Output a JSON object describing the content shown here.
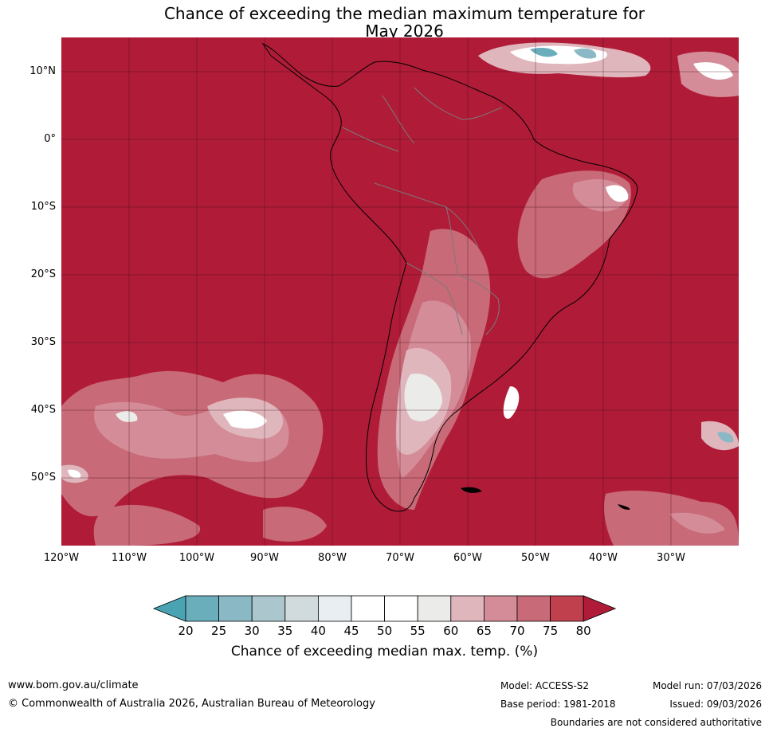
{
  "title": {
    "line1": "Chance of exceeding the median maximum temperature for",
    "line2": "May 2026"
  },
  "map": {
    "lat_labels": [
      "10°N",
      "0°",
      "10°S",
      "20°S",
      "30°S",
      "40°S",
      "50°S"
    ],
    "lon_labels": [
      "120°W",
      "110°W",
      "100°W",
      "90°W",
      "80°W",
      "70°W",
      "60°W",
      "50°W",
      "40°W",
      "30°W"
    ],
    "lat_range": [
      -60,
      15
    ],
    "lon_range": [
      -120,
      -20
    ],
    "background_class": "80"
  },
  "colorbar": {
    "ticks": [
      "20",
      "25",
      "30",
      "35",
      "40",
      "45",
      "50",
      "55",
      "60",
      "65",
      "70",
      "75",
      "80"
    ],
    "colors": [
      "#4aa3b3",
      "#6aaebc",
      "#8ab9c5",
      "#abc7cd",
      "#d1dadd",
      "#e8eef1",
      "#ffffff",
      "#ffffff",
      "#ebebea",
      "#e0b6bd",
      "#d48c98",
      "#c86a78",
      "#c0404e",
      "#b01c38"
    ],
    "label": "Chance of exceeding median max. temp. (%)"
  },
  "footer": {
    "url": "www.bom.gov.au/climate",
    "copyright": "© Commonwealth of Australia 2026, Australian Bureau of Meteorology",
    "model": "Model: ACCESS-S2",
    "base_period": "Base period: 1981-2018",
    "model_run": "Model run: 07/03/2026",
    "issued": "Issued: 09/03/2026",
    "disclaimer": "Boundaries are not considered authoritative"
  }
}
